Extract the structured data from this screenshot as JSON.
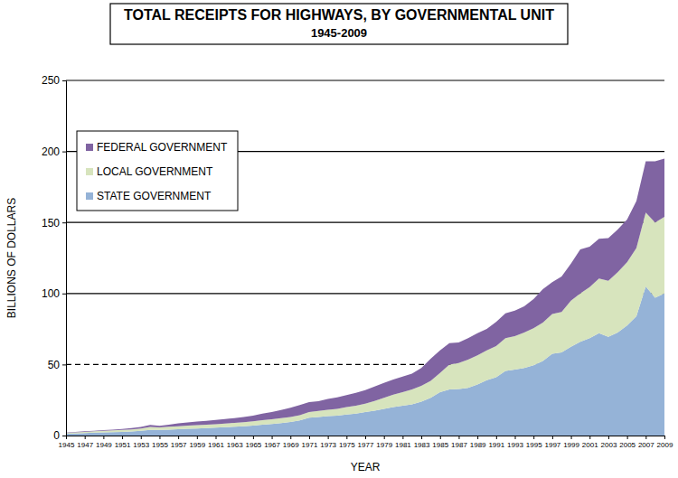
{
  "chart_data": {
    "type": "area",
    "title": "TOTAL RECEIPTS FOR HIGHWAYS, BY GOVERNMENTAL UNIT",
    "subtitle": "1945-2009",
    "x_label": "YEAR",
    "y_label": "BILLIONS OF DOLLARS",
    "stacked": true,
    "grid": true,
    "legend": "upper left",
    "x": [
      1945,
      1946,
      1947,
      1948,
      1949,
      1950,
      1951,
      1952,
      1953,
      1954,
      1955,
      1956,
      1957,
      1958,
      1959,
      1960,
      1961,
      1962,
      1963,
      1964,
      1965,
      1966,
      1967,
      1968,
      1969,
      1970,
      1971,
      1972,
      1973,
      1974,
      1975,
      1976,
      1977,
      1978,
      1979,
      1980,
      1981,
      1982,
      1983,
      1984,
      1985,
      1986,
      1987,
      1988,
      1989,
      1990,
      1991,
      1992,
      1993,
      1994,
      1995,
      1996,
      1997,
      1998,
      1999,
      2000,
      2001,
      2002,
      2003,
      2004,
      2005,
      2006,
      2007,
      2008,
      2009
    ],
    "xlim": [
      1945,
      2009
    ],
    "xticks": [
      1945,
      1947,
      1949,
      1951,
      1953,
      1955,
      1957,
      1959,
      1961,
      1963,
      1965,
      1967,
      1969,
      1971,
      1973,
      1975,
      1977,
      1979,
      1981,
      1983,
      1985,
      1987,
      1989,
      1991,
      1993,
      1995,
      1997,
      1999,
      2001,
      2003,
      2005,
      2007,
      2009
    ],
    "ylim": [
      0,
      250
    ],
    "yticks": [
      0,
      50,
      100,
      150,
      200,
      250
    ],
    "series": [
      {
        "name": "STATE GOVERNMENT",
        "color": "#95b3d7",
        "values": [
          1.2,
          1.5,
          1.8,
          2.0,
          2.2,
          2.4,
          2.6,
          2.9,
          3.4,
          4.0,
          3.9,
          4.2,
          4.5,
          4.8,
          5.0,
          5.3,
          5.5,
          5.9,
          6.2,
          6.6,
          7.0,
          7.6,
          8.1,
          8.8,
          9.6,
          10.6,
          12.5,
          13.0,
          13.7,
          14.0,
          14.8,
          15.5,
          16.5,
          17.5,
          18.8,
          20.0,
          21.0,
          22.0,
          23.8,
          26.5,
          30.5,
          32.5,
          32.8,
          33.5,
          36.0,
          39.0,
          41.0,
          45.5,
          46.5,
          47.5,
          49.5,
          52.5,
          57.5,
          58.5,
          62.5,
          66.0,
          68.5,
          72.0,
          69.5,
          72.5,
          77.5,
          84.0,
          105.0,
          97.0,
          100.0
        ]
      },
      {
        "name": "LOCAL GOVERNMENT",
        "color": "#d7e4bd",
        "values": [
          0.5,
          0.7,
          0.8,
          1.0,
          1.1,
          1.2,
          1.3,
          1.4,
          1.6,
          2.0,
          1.9,
          2.0,
          2.1,
          2.2,
          2.3,
          2.4,
          2.5,
          2.6,
          2.7,
          2.8,
          3.0,
          3.2,
          3.3,
          3.4,
          3.5,
          3.7,
          4.0,
          4.3,
          4.5,
          4.8,
          5.2,
          5.5,
          6.0,
          6.8,
          7.7,
          8.8,
          9.5,
          10.5,
          11.2,
          12.0,
          13.5,
          17.5,
          18.2,
          20.0,
          20.5,
          21.0,
          22.0,
          23.0,
          23.5,
          25.0,
          26.0,
          27.0,
          28.0,
          28.5,
          32.5,
          34.0,
          36.0,
          38.5,
          39.5,
          42.5,
          44.5,
          48.0,
          52.0,
          53.0,
          54.0
        ]
      },
      {
        "name": "FEDERAL GOVERNMENT",
        "color": "#8064a2",
        "values": [
          0.3,
          0.4,
          0.4,
          0.4,
          0.5,
          0.6,
          0.7,
          0.9,
          1.0,
          1.5,
          1.0,
          1.4,
          2.0,
          2.2,
          2.5,
          2.6,
          3.0,
          3.1,
          3.4,
          3.6,
          4.0,
          4.7,
          5.1,
          5.8,
          6.4,
          7.2,
          7.0,
          6.9,
          7.6,
          8.0,
          8.5,
          9.0,
          9.5,
          10.2,
          10.5,
          10.7,
          11.0,
          11.0,
          12.5,
          15.5,
          16.0,
          15.0,
          14.5,
          15.0,
          15.5,
          15.0,
          17.0,
          17.5,
          18.0,
          18.5,
          20.5,
          23.5,
          22.5,
          25.0,
          26.0,
          31.0,
          28.5,
          28.0,
          30.0,
          30.0,
          30.0,
          33.0,
          36.0,
          43.0,
          41.0
        ]
      }
    ]
  }
}
